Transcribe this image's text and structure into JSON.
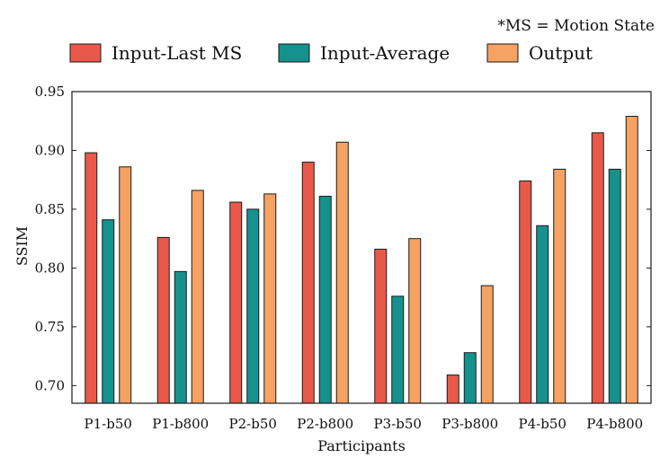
{
  "note": "*MS = Motion State",
  "chart_data": {
    "type": "bar",
    "title": "",
    "xlabel": "Participants",
    "ylabel": "SSIM",
    "ylim": [
      0.685,
      0.95
    ],
    "yticks": [
      0.7,
      0.75,
      0.8,
      0.85,
      0.9,
      0.95
    ],
    "ytick_labels": [
      "0.70",
      "0.75",
      "0.80",
      "0.85",
      "0.90",
      "0.95"
    ],
    "grid": false,
    "legend_position": "top",
    "categories": [
      "P1-b50",
      "P1-b800",
      "P2-b50",
      "P2-b800",
      "P3-b50",
      "P3-b800",
      "P4-b50",
      "P4-b800"
    ],
    "series": [
      {
        "name": "Input-Last MS",
        "color": "#E8594A",
        "values": [
          0.898,
          0.826,
          0.856,
          0.89,
          0.816,
          0.709,
          0.874,
          0.915
        ]
      },
      {
        "name": "Input-Average",
        "color": "#16918E",
        "values": [
          0.841,
          0.797,
          0.85,
          0.861,
          0.776,
          0.728,
          0.836,
          0.884
        ]
      },
      {
        "name": "Output",
        "color": "#F6A263",
        "values": [
          0.886,
          0.866,
          0.863,
          0.907,
          0.825,
          0.785,
          0.884,
          0.929
        ]
      }
    ]
  }
}
